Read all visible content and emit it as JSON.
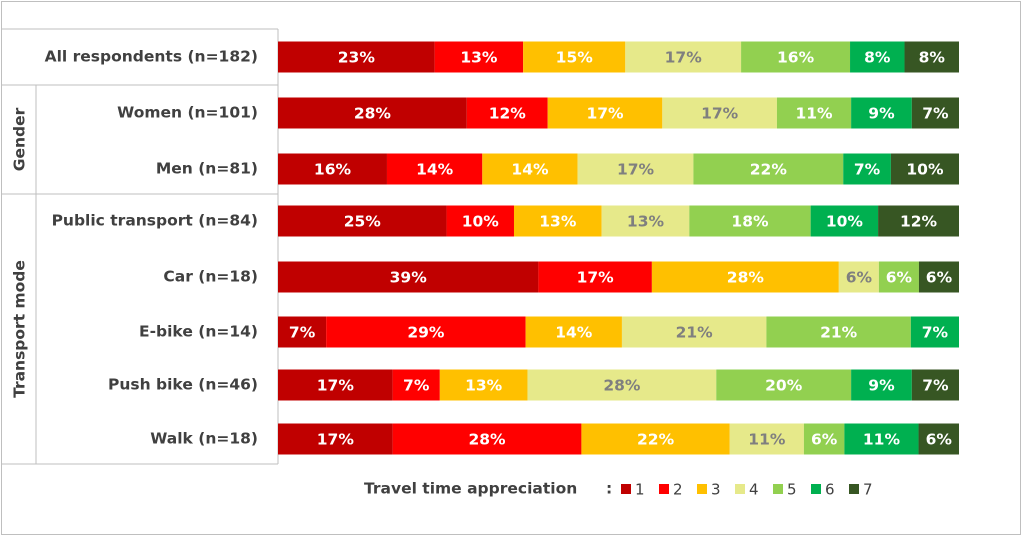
{
  "chart_data": {
    "type": "bar",
    "orientation": "horizontal",
    "stacked": true,
    "normalized": true,
    "categories": [
      "All respondents (n=182)",
      "Women (n=101)",
      "Men (n=81)",
      "Public transport (n=84)",
      "Car (n=18)",
      "E-bike (n=14)",
      "Push bike (n=46)",
      "Walk (n=18)"
    ],
    "groups": [
      {
        "label": "Gender",
        "categories": [
          "Women (n=101)",
          "Men (n=81)"
        ]
      },
      {
        "label": "Transport mode",
        "categories": [
          "Public transport (n=84)",
          "Car (n=18)",
          "E-bike (n=14)",
          "Push bike (n=46)",
          "Walk (n=18)"
        ]
      }
    ],
    "series": [
      {
        "name": "1",
        "color": "#c00000",
        "values": [
          23,
          28,
          16,
          25,
          39,
          7,
          17,
          17
        ]
      },
      {
        "name": "2",
        "color": "#ff0000",
        "values": [
          13,
          12,
          14,
          10,
          17,
          29,
          7,
          28
        ]
      },
      {
        "name": "3",
        "color": "#ffc000",
        "values": [
          15,
          17,
          14,
          13,
          28,
          14,
          13,
          22
        ]
      },
      {
        "name": "4",
        "color": "#e6e98a",
        "values": [
          17,
          17,
          17,
          13,
          6,
          21,
          28,
          11
        ]
      },
      {
        "name": "5",
        "color": "#92d050",
        "values": [
          16,
          11,
          22,
          18,
          6,
          21,
          20,
          6
        ]
      },
      {
        "name": "6",
        "color": "#00b050",
        "values": [
          8,
          9,
          7,
          10,
          0,
          7,
          9,
          11
        ]
      },
      {
        "name": "7",
        "color": "#375623",
        "values": [
          8,
          7,
          10,
          12,
          6,
          0,
          7,
          6
        ]
      }
    ],
    "label_colors": {
      "light": "#ffffff",
      "dark": "#7f7f7f"
    },
    "legend": {
      "title": "Travel time appreciation",
      "separator": ":",
      "position": "bottom"
    },
    "value_suffix": "%",
    "xlim": [
      0,
      100
    ],
    "grid": false
  }
}
